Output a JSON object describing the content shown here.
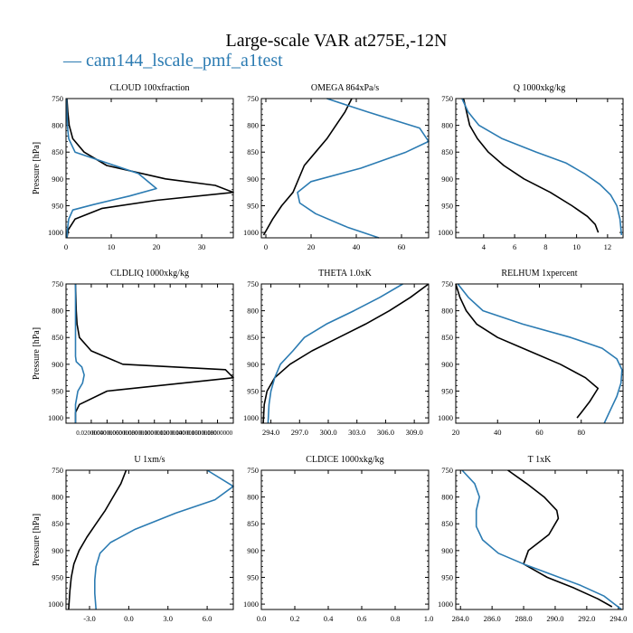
{
  "figure": {
    "title": "Large-scale VAR at275E,-12N",
    "legend_label": "— cam144_lscale_pmf_a1test"
  },
  "colors": {
    "series_a": "#000000",
    "series_b": "#2b7bb2"
  },
  "chart_data": [
    {
      "type": "line",
      "title": "CLOUD  100xfraction",
      "ylabel": "Pressure [hPa]",
      "xlabel": "",
      "xlim": [
        0,
        37
      ],
      "ylim": [
        1010,
        750
      ],
      "xticks": [
        0,
        10,
        20,
        30
      ],
      "xtick_labels": [
        "0",
        "10",
        "20",
        "30"
      ],
      "yticks": [
        750,
        800,
        850,
        900,
        950,
        1000
      ],
      "ytick_labels": [
        "750",
        "800",
        "850",
        "900",
        "950",
        "1000"
      ],
      "series": [
        {
          "x": [
            0.2,
            0.4,
            0.7,
            1.5,
            4,
            9,
            22,
            33,
            37,
            20,
            8,
            2,
            0.5,
            0.2
          ],
          "y": [
            750,
            775,
            800,
            825,
            850,
            875,
            900,
            912,
            925,
            940,
            955,
            975,
            995,
            1010
          ]
        },
        {
          "x": [
            0.1,
            0.2,
            0.3,
            0.6,
            2,
            9,
            16,
            20,
            14,
            6,
            1.5,
            0.6,
            0.3,
            0.2
          ],
          "y": [
            750,
            775,
            800,
            825,
            850,
            870,
            890,
            918,
            932,
            948,
            958,
            975,
            995,
            1010
          ]
        }
      ]
    },
    {
      "type": "line",
      "title": "OMEGA  864xPa/s",
      "ylabel": "",
      "xlabel": "",
      "xlim": [
        -2,
        72
      ],
      "ylim": [
        1010,
        750
      ],
      "xticks": [
        0,
        20,
        40,
        60
      ],
      "xtick_labels": [
        "0",
        "20",
        "40",
        "60"
      ],
      "yticks": [
        750,
        800,
        850,
        900,
        950,
        1000
      ],
      "ytick_labels": [
        "750",
        "800",
        "850",
        "900",
        "950",
        "1000"
      ],
      "series": [
        {
          "x": [
            38,
            35,
            31,
            27,
            22,
            17,
            12,
            7,
            3,
            -1
          ],
          "y": [
            750,
            775,
            800,
            825,
            850,
            875,
            925,
            950,
            975,
            1005
          ]
        },
        {
          "x": [
            27,
            45,
            68,
            72,
            62,
            42,
            20,
            14,
            15,
            22,
            36,
            50
          ],
          "y": [
            750,
            775,
            805,
            830,
            850,
            880,
            905,
            925,
            945,
            965,
            990,
            1010
          ]
        }
      ]
    },
    {
      "type": "line",
      "title": "Q  1000xkg/kg",
      "ylabel": "",
      "xlabel": "",
      "xlim": [
        2.2,
        13
      ],
      "ylim": [
        1010,
        750
      ],
      "xticks": [
        4,
        6,
        8,
        10,
        12
      ],
      "xtick_labels": [
        "4",
        "6",
        "8",
        "10",
        "12"
      ],
      "yticks": [
        750,
        800,
        850,
        900,
        950,
        1000
      ],
      "ytick_labels": [
        "750",
        "800",
        "850",
        "900",
        "950",
        "1000"
      ],
      "series": [
        {
          "x": [
            2.7,
            2.9,
            3.1,
            3.6,
            4.3,
            5.3,
            6.6,
            8.3,
            9.7,
            10.7,
            11.2,
            11.4
          ],
          "y": [
            750,
            775,
            800,
            825,
            850,
            875,
            900,
            925,
            950,
            970,
            985,
            1000
          ]
        },
        {
          "x": [
            2.6,
            3.0,
            3.7,
            5.2,
            7.4,
            9.3,
            10.5,
            11.5,
            12.2,
            12.6,
            12.8,
            12.9
          ],
          "y": [
            750,
            775,
            800,
            825,
            850,
            870,
            890,
            910,
            930,
            950,
            975,
            1005
          ]
        }
      ]
    },
    {
      "type": "line",
      "title": "CLDLIQ  1000xkg/kg",
      "ylabel": "Pressure [hPa]",
      "xlabel": "",
      "xlim": [
        -0.012,
        0.2
      ],
      "ylim": [
        1010,
        750
      ],
      "xticks": [
        0.02,
        0.04,
        0.06,
        0.08,
        0.1,
        0.12,
        0.14,
        0.16,
        0.18
      ],
      "xtick_labels": [
        "0.02000000",
        "0.04000000",
        "0.06000000",
        "0.08000000",
        "0.10000000",
        "0.12000000",
        "0.14000000",
        "0.16000000",
        "0.18000000"
      ],
      "yticks": [
        750,
        800,
        850,
        900,
        950,
        1000
      ],
      "ytick_labels": [
        "750",
        "800",
        "850",
        "900",
        "950",
        "1000"
      ],
      "series": [
        {
          "x": [
            0.0,
            0.0005,
            0.001,
            0.002,
            0.005,
            0.02,
            0.06,
            0.19,
            0.2,
            0.04,
            0.005,
            0.0,
            0.0
          ],
          "y": [
            750,
            775,
            800,
            825,
            850,
            875,
            900,
            910,
            925,
            950,
            975,
            990,
            1010
          ]
        },
        {
          "x": [
            0.0,
            0.0,
            0.0,
            0.0,
            0.0,
            0.001,
            0.008,
            0.011,
            0.009,
            0.003,
            0.0,
            0.0
          ],
          "y": [
            750,
            800,
            850,
            870,
            885,
            895,
            905,
            920,
            935,
            950,
            975,
            1010
          ]
        }
      ]
    },
    {
      "type": "line",
      "title": "THETA  1.0xK",
      "ylabel": "",
      "xlabel": "",
      "xlim": [
        293.0,
        310.5
      ],
      "ylim": [
        1010,
        750
      ],
      "xticks": [
        294,
        297,
        300,
        303,
        306,
        309
      ],
      "xtick_labels": [
        "294.0",
        "297.0",
        "300.0",
        "303.0",
        "306.0",
        "309.0"
      ],
      "yticks": [
        750,
        800,
        850,
        900,
        950,
        1000
      ],
      "ytick_labels": [
        "750",
        "800",
        "850",
        "900",
        "950",
        "1000"
      ],
      "series": [
        {
          "x": [
            310.5,
            308.6,
            306.4,
            303.9,
            301.1,
            298.3,
            296.0,
            294.4,
            293.6,
            293.3,
            293.2
          ],
          "y": [
            750,
            775,
            800,
            825,
            850,
            875,
            900,
            925,
            950,
            975,
            1010
          ]
        },
        {
          "x": [
            307.8,
            305.4,
            302.7,
            299.8,
            297.5,
            296.3,
            295.0,
            294.4,
            294.0,
            293.8,
            293.7
          ],
          "y": [
            750,
            775,
            800,
            825,
            850,
            875,
            900,
            925,
            950,
            975,
            1010
          ]
        }
      ]
    },
    {
      "type": "line",
      "title": "RELHUM  1xpercent",
      "ylabel": "",
      "xlabel": "",
      "xlim": [
        20,
        100
      ],
      "ylim": [
        1010,
        750
      ],
      "xticks": [
        20,
        40,
        60,
        80
      ],
      "xtick_labels": [
        "20",
        "40",
        "60",
        "80"
      ],
      "yticks": [
        750,
        800,
        850,
        900,
        950,
        1000
      ],
      "ytick_labels": [
        "750",
        "800",
        "850",
        "900",
        "950",
        "1000"
      ],
      "series": [
        {
          "x": [
            20,
            22,
            25,
            30,
            40,
            55,
            70,
            82,
            88,
            84,
            80,
            78
          ],
          "y": [
            750,
            775,
            800,
            825,
            850,
            875,
            900,
            925,
            945,
            970,
            990,
            1000
          ]
        },
        {
          "x": [
            21,
            26,
            33,
            52,
            75,
            90,
            97,
            99.5,
            99,
            97,
            94,
            91
          ],
          "y": [
            750,
            775,
            800,
            825,
            850,
            870,
            890,
            910,
            935,
            960,
            985,
            1010
          ]
        }
      ]
    },
    {
      "type": "line",
      "title": "U  1xm/s",
      "ylabel": "Pressure [hPa]",
      "xlabel": "",
      "xlim": [
        -4.8,
        8.0
      ],
      "ylim": [
        1010,
        750
      ],
      "xticks": [
        -3,
        0,
        3,
        6
      ],
      "xtick_labels": [
        "-3.0",
        "0.0",
        "3.0",
        "6.0"
      ],
      "yticks": [
        750,
        800,
        850,
        900,
        950,
        1000
      ],
      "ytick_labels": [
        "750",
        "800",
        "850",
        "900",
        "950",
        "1000"
      ],
      "series": [
        {
          "x": [
            -0.2,
            -0.6,
            -1.2,
            -1.8,
            -2.5,
            -3.2,
            -3.8,
            -4.2,
            -4.4,
            -4.5,
            -4.6
          ],
          "y": [
            750,
            775,
            800,
            825,
            850,
            875,
            900,
            925,
            950,
            975,
            1010
          ]
        },
        {
          "x": [
            6.0,
            8.0,
            6.6,
            3.6,
            0.5,
            -1.4,
            -2.2,
            -2.5,
            -2.6,
            -2.6,
            -2.5
          ],
          "y": [
            750,
            780,
            805,
            830,
            860,
            885,
            905,
            930,
            955,
            980,
            1010
          ]
        }
      ]
    },
    {
      "type": "line",
      "title": "CLDICE  1000xkg/kg",
      "ylabel": "",
      "xlabel": "",
      "xlim": [
        0,
        1
      ],
      "ylim": [
        1010,
        750
      ],
      "xticks": [
        0,
        0.2,
        0.4,
        0.6,
        0.8,
        1.0
      ],
      "xtick_labels": [
        "0.0",
        "0.2",
        "0.4",
        "0.6",
        "0.8",
        "1.0"
      ],
      "yticks": [
        750,
        800,
        850,
        900,
        950,
        1000
      ],
      "ytick_labels": [
        "750",
        "800",
        "850",
        "900",
        "950",
        "1000"
      ],
      "series": []
    },
    {
      "type": "line",
      "title": "T  1xK",
      "ylabel": "",
      "xlabel": "",
      "xlim": [
        283.7,
        294.3
      ],
      "ylim": [
        1010,
        750
      ],
      "xticks": [
        284,
        286,
        288,
        290,
        292,
        294
      ],
      "xtick_labels": [
        "284.0",
        "286.0",
        "288.0",
        "290.0",
        "292.0",
        "294.0"
      ],
      "yticks": [
        750,
        800,
        850,
        900,
        950,
        1000
      ],
      "ytick_labels": [
        "750",
        "800",
        "850",
        "900",
        "950",
        "1000"
      ],
      "series": [
        {
          "x": [
            287.0,
            288.2,
            289.3,
            290.1,
            290.2,
            289.6,
            288.3,
            288.0,
            289.5,
            291.2,
            292.7,
            293.6
          ],
          "y": [
            750,
            775,
            800,
            825,
            840,
            870,
            900,
            925,
            950,
            970,
            990,
            1005
          ]
        },
        {
          "x": [
            284.1,
            284.9,
            285.2,
            285.0,
            285.0,
            285.4,
            286.4,
            288.0,
            289.8,
            291.6,
            293.1,
            294.2
          ],
          "y": [
            750,
            775,
            800,
            825,
            855,
            880,
            905,
            925,
            945,
            965,
            985,
            1010
          ]
        }
      ]
    }
  ]
}
